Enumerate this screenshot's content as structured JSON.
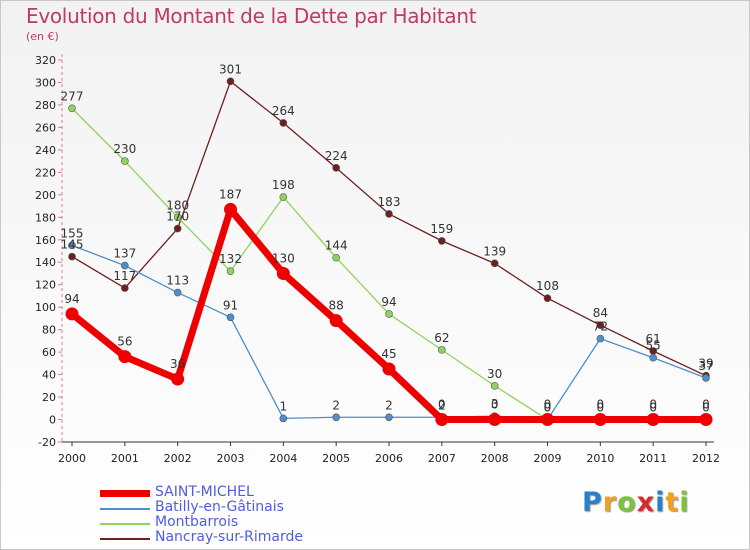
{
  "header": {
    "title": "Evolution du Montant de la Dette par Habitant",
    "subtitle": "(en €)"
  },
  "logo": {
    "text": "Proxiti",
    "letter_colors": [
      "#2a7fc9",
      "#f0a21f",
      "#7cc33a",
      "#d62b2b",
      "#2a7fc9",
      "#f0a21f",
      "#7cc33a"
    ]
  },
  "chart_data": {
    "type": "line",
    "x": [
      "2000",
      "2001",
      "2002",
      "2003",
      "2004",
      "2005",
      "2006",
      "2007",
      "2008",
      "2009",
      "2010",
      "2011",
      "2012"
    ],
    "ylim": [
      -20,
      320
    ],
    "ytick_step": 20,
    "grid": false,
    "legend_position": "bottom-left",
    "series": [
      {
        "name": "SAINT-MICHEL",
        "color": "#ee0000",
        "values": [
          94,
          56,
          36,
          187,
          130,
          88,
          45,
          0,
          0,
          0,
          0,
          0,
          0
        ]
      },
      {
        "name": "Batilly-en-Gâtinais",
        "color": "#4d8fcc",
        "values": [
          155,
          137,
          113,
          91,
          1,
          2,
          2,
          2,
          3,
          0,
          72,
          55,
          37
        ]
      },
      {
        "name": "Montbarrois",
        "color": "#8fd45a",
        "values": [
          277,
          230,
          180,
          132,
          198,
          144,
          94,
          62,
          30,
          0,
          0,
          0,
          0
        ]
      },
      {
        "name": "Nancray-sur-Rimarde",
        "color": "#6e1f1f",
        "values": [
          145,
          117,
          170,
          301,
          264,
          224,
          183,
          159,
          139,
          108,
          84,
          61,
          39
        ]
      }
    ]
  }
}
